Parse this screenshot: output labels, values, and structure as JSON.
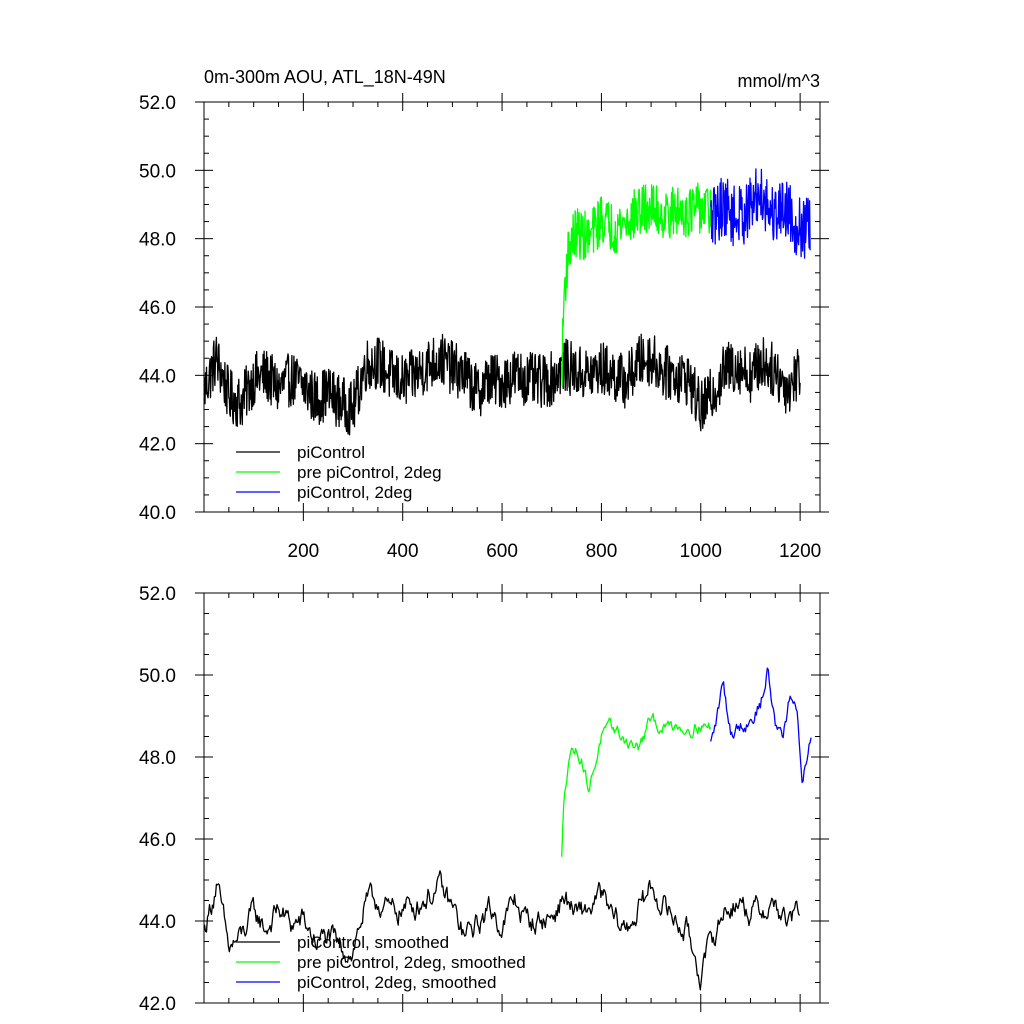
{
  "chart_data": [
    {
      "type": "line",
      "title": "0m-300m AOU, ATL_18N-49N",
      "units": "mmol/m^3",
      "xlim": [
        0,
        1240
      ],
      "ylim": [
        40,
        52
      ],
      "x_ticks": [
        "200",
        "400",
        "600",
        "800",
        "1000",
        "1200"
      ],
      "y_ticks": [
        "40.0",
        "42.0",
        "44.0",
        "46.0",
        "48.0",
        "50.0",
        "52.0"
      ],
      "legend_position": "lower-left",
      "series": [
        {
          "name": "piControl",
          "color": "#000000",
          "x": [
            1,
            25,
            50,
            75,
            100,
            125,
            150,
            175,
            200,
            225,
            250,
            275,
            300,
            325,
            350,
            375,
            400,
            425,
            450,
            475,
            500,
            525,
            550,
            575,
            600,
            625,
            650,
            675,
            700,
            725,
            750,
            775,
            800,
            825,
            850,
            875,
            900,
            925,
            950,
            975,
            1000,
            1025,
            1050,
            1075,
            1100,
            1125,
            1150,
            1175,
            1200
          ],
          "values": [
            43.6,
            44.5,
            43.4,
            43.2,
            43.9,
            44.0,
            43.6,
            43.9,
            43.7,
            43.3,
            43.5,
            43.2,
            43.0,
            44.3,
            44.4,
            44.0,
            43.8,
            44.0,
            44.3,
            44.5,
            44.2,
            44.0,
            43.5,
            43.9,
            43.8,
            44.0,
            43.9,
            43.8,
            43.9,
            44.3,
            44.1,
            44.0,
            44.2,
            44.0,
            43.8,
            44.4,
            44.5,
            44.1,
            44.0,
            43.9,
            43.0,
            43.5,
            44.2,
            44.3,
            44.0,
            44.4,
            44.1,
            43.6,
            44.2
          ],
          "noise": 0.8
        },
        {
          "name": "pre piControl, 2deg",
          "color": "#00ff00",
          "x": [
            720,
            725,
            735,
            750,
            775,
            800,
            825,
            850,
            875,
            900,
            925,
            950,
            975,
            1000,
            1020
          ],
          "values": [
            43.9,
            46.5,
            47.8,
            48.2,
            48.0,
            48.6,
            48.3,
            48.5,
            48.8,
            48.9,
            48.7,
            48.8,
            48.8,
            48.9,
            48.8
          ],
          "noise": 0.75
        },
        {
          "name": "piControl, 2deg",
          "color": "#0000ff",
          "x": [
            1020,
            1045,
            1070,
            1095,
            1120,
            1145,
            1170,
            1195,
            1220
          ],
          "values": [
            48.5,
            49.0,
            48.6,
            48.8,
            49.4,
            48.7,
            49.0,
            48.3,
            48.3
          ],
          "noise": 0.9
        }
      ]
    },
    {
      "type": "line",
      "title": "",
      "xlim": [
        0,
        1240
      ],
      "ylim": [
        42,
        52
      ],
      "y_ticks": [
        "42.0",
        "44.0",
        "46.0",
        "48.0",
        "50.0",
        "52.0"
      ],
      "legend_position": "lower-left",
      "series": [
        {
          "name": "piControl, smoothed",
          "color": "#000000",
          "x": [
            1,
            25,
            50,
            75,
            100,
            125,
            150,
            175,
            200,
            225,
            250,
            275,
            300,
            325,
            350,
            375,
            400,
            425,
            450,
            475,
            500,
            525,
            550,
            575,
            600,
            625,
            650,
            675,
            700,
            725,
            750,
            775,
            800,
            825,
            850,
            875,
            900,
            925,
            950,
            975,
            1000,
            1025,
            1050,
            1075,
            1100,
            1125,
            1150,
            1175,
            1200
          ],
          "values": [
            43.8,
            44.9,
            43.3,
            43.6,
            44.2,
            43.8,
            44.3,
            43.9,
            44.0,
            43.5,
            43.6,
            43.3,
            43.3,
            44.4,
            44.5,
            44.2,
            44.3,
            44.4,
            44.6,
            44.8,
            44.3,
            43.6,
            43.9,
            44.3,
            43.9,
            44.5,
            44.0,
            44.0,
            44.1,
            44.6,
            44.1,
            44.3,
            44.6,
            44.0,
            43.8,
            44.3,
            44.8,
            44.4,
            44.0,
            43.7,
            42.7,
            43.6,
            44.3,
            44.5,
            44.2,
            44.3,
            44.4,
            43.9,
            44.3
          ],
          "noise": 0.45
        },
        {
          "name": "pre piControl, 2deg, smoothed",
          "color": "#00ff00",
          "x": [
            720,
            725,
            735,
            745,
            760,
            775,
            790,
            800,
            825,
            850,
            875,
            900,
            925,
            950,
            975,
            1000,
            1020
          ],
          "values": [
            45.5,
            47.1,
            48.1,
            48.2,
            48.0,
            47.2,
            48.0,
            48.5,
            48.7,
            48.4,
            48.2,
            48.9,
            48.7,
            48.8,
            48.7,
            48.8,
            48.7
          ],
          "noise": 0.25
        },
        {
          "name": "piControl, 2deg, smoothed",
          "color": "#0000ff",
          "x": [
            1020,
            1030,
            1045,
            1060,
            1080,
            1100,
            1120,
            1135,
            1150,
            1165,
            1180,
            1195,
            1205,
            1215,
            1222
          ],
          "values": [
            48.3,
            48.8,
            49.8,
            48.6,
            48.8,
            48.9,
            49.3,
            50.1,
            48.8,
            48.6,
            49.5,
            48.9,
            47.4,
            48.1,
            48.6
          ],
          "noise": 0.28
        }
      ]
    }
  ]
}
